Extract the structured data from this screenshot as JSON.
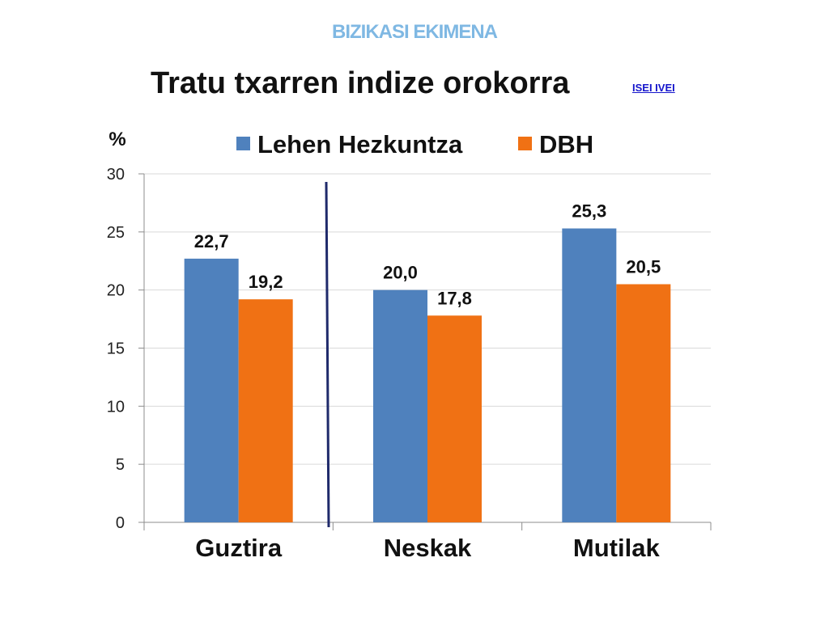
{
  "header": {
    "text": "BIZIKASI EKIMENA"
  },
  "page_title": "Tratu txarren indize orokorra",
  "link": {
    "label": "ISEI  IVEI"
  },
  "colors": {
    "header": "#7fb8e3",
    "series1": "#4f81bd",
    "series2": "#f07114",
    "divider": "#1f2a6b",
    "link": "#1515cc"
  },
  "chart_data": {
    "type": "bar",
    "title": "",
    "ylabel": "%",
    "xlabel": "",
    "ylim": [
      0,
      30
    ],
    "yticks": [
      0,
      5,
      10,
      15,
      20,
      25,
      30
    ],
    "grid": true,
    "legend_position": "top",
    "categories": [
      "Guztira",
      "Neskak",
      "Mutilak"
    ],
    "series": [
      {
        "name": "Lehen Hezkuntza",
        "values": [
          22.7,
          20.0,
          25.3
        ],
        "labels": [
          "22,7",
          "20,0",
          "25,3"
        ],
        "color": "#4f81bd"
      },
      {
        "name": "DBH",
        "values": [
          19.2,
          17.8,
          20.5
        ],
        "labels": [
          "19,2",
          "17,8",
          "20,5"
        ],
        "color": "#f07114"
      }
    ]
  }
}
